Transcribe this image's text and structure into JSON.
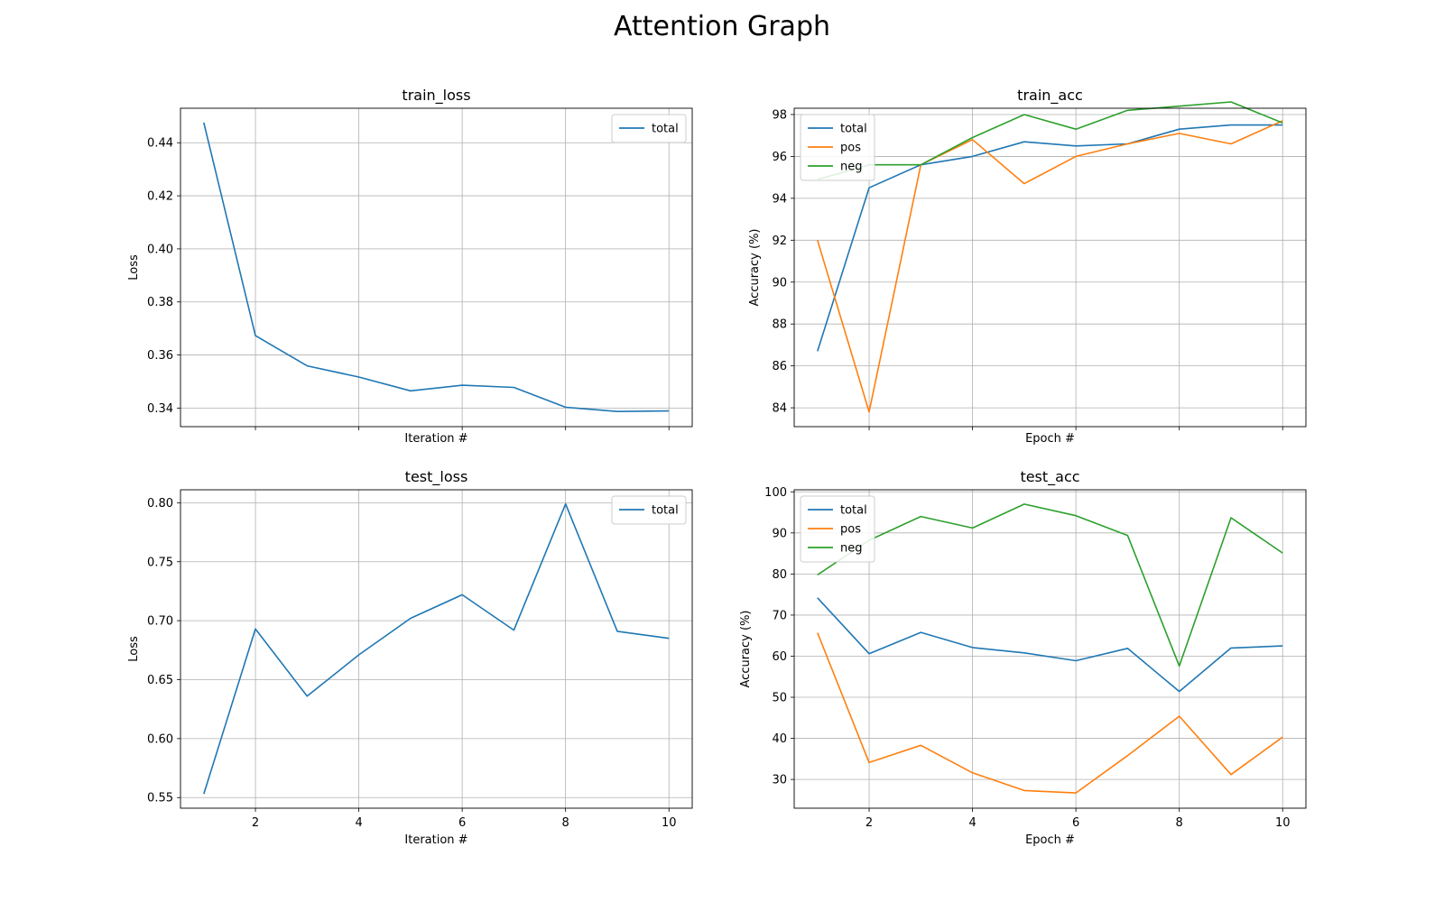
{
  "figure": {
    "title": "Attention Graph"
  },
  "colors": {
    "total": "#1f77b4",
    "pos": "#ff7f0e",
    "neg": "#2ca02c",
    "grid": "#b0b0b0"
  },
  "chart_data": [
    {
      "id": "train_loss",
      "type": "line",
      "title": "train_loss",
      "xlabel": "Iteration #",
      "ylabel": "Loss",
      "x": [
        1,
        2,
        3,
        4,
        5,
        6,
        7,
        8,
        9,
        10
      ],
      "xlim": [
        0.55,
        10.45
      ],
      "ylim": [
        0.333,
        0.453
      ],
      "xticks": [
        2,
        4,
        6,
        8,
        10
      ],
      "yticks": [
        0.34,
        0.36,
        0.38,
        0.4,
        0.42,
        0.44
      ],
      "ytick_labels": [
        "0.34",
        "0.36",
        "0.38",
        "0.40",
        "0.42",
        "0.44"
      ],
      "show_xtick_labels": false,
      "grid": true,
      "legend": "top-right",
      "series": [
        {
          "name": "total",
          "color_key": "total",
          "values": [
            0.4476,
            0.3673,
            0.3559,
            0.3517,
            0.3465,
            0.3486,
            0.3478,
            0.3403,
            0.3387,
            0.3389
          ]
        }
      ]
    },
    {
      "id": "train_acc",
      "type": "line",
      "title": "train_acc",
      "xlabel": "Epoch #",
      "ylabel": "Accuracy (%)",
      "x": [
        1,
        2,
        3,
        4,
        5,
        6,
        7,
        8,
        9,
        10
      ],
      "xlim": [
        0.55,
        10.45
      ],
      "ylim": [
        83.1,
        98.3
      ],
      "xticks": [
        2,
        4,
        6,
        8,
        10
      ],
      "yticks": [
        84,
        86,
        88,
        90,
        92,
        94,
        96,
        98
      ],
      "ytick_labels": [
        "84",
        "86",
        "88",
        "90",
        "92",
        "94",
        "96",
        "98"
      ],
      "show_xtick_labels": false,
      "grid": true,
      "legend": "top-left",
      "series": [
        {
          "name": "total",
          "color_key": "total",
          "values": [
            86.7,
            94.5,
            95.6,
            96.0,
            96.7,
            96.5,
            96.6,
            97.3,
            97.5,
            97.5
          ]
        },
        {
          "name": "pos",
          "color_key": "pos",
          "values": [
            92.0,
            83.8,
            95.6,
            96.8,
            94.7,
            96.0,
            96.6,
            97.1,
            96.6,
            97.7
          ]
        },
        {
          "name": "neg",
          "color_key": "neg",
          "values": [
            94.9,
            95.6,
            95.6,
            96.9,
            98.0,
            97.3,
            98.2,
            98.4,
            98.6,
            97.6
          ]
        }
      ]
    },
    {
      "id": "test_loss",
      "type": "line",
      "title": "test_loss",
      "xlabel": "Iteration #",
      "ylabel": "Loss",
      "x": [
        1,
        2,
        3,
        4,
        5,
        6,
        7,
        8,
        9,
        10
      ],
      "xlim": [
        0.55,
        10.45
      ],
      "ylim": [
        0.541,
        0.811
      ],
      "xticks": [
        2,
        4,
        6,
        8,
        10
      ],
      "xtick_labels": [
        "2",
        "4",
        "6",
        "8",
        "10"
      ],
      "yticks": [
        0.55,
        0.6,
        0.65,
        0.7,
        0.75,
        0.8
      ],
      "ytick_labels": [
        "0.55",
        "0.60",
        "0.65",
        "0.70",
        "0.75",
        "0.80"
      ],
      "show_xtick_labels": true,
      "grid": true,
      "legend": "top-right",
      "series": [
        {
          "name": "total",
          "color_key": "total",
          "values": [
            0.553,
            0.693,
            0.636,
            0.671,
            0.702,
            0.722,
            0.692,
            0.799,
            0.691,
            0.685
          ]
        }
      ]
    },
    {
      "id": "test_acc",
      "type": "line",
      "title": "test_acc",
      "xlabel": "Epoch #",
      "ylabel": "Accuracy (%)",
      "x": [
        1,
        2,
        3,
        4,
        5,
        6,
        7,
        8,
        9,
        10
      ],
      "xlim": [
        0.55,
        10.45
      ],
      "ylim": [
        23.0,
        100.5
      ],
      "xticks": [
        2,
        4,
        6,
        8,
        10
      ],
      "xtick_labels": [
        "2",
        "4",
        "6",
        "8",
        "10"
      ],
      "yticks": [
        30,
        40,
        50,
        60,
        70,
        80,
        90,
        100
      ],
      "ytick_labels": [
        "30",
        "40",
        "50",
        "60",
        "70",
        "80",
        "90",
        "100"
      ],
      "show_xtick_labels": true,
      "grid": true,
      "legend": "top-left",
      "series": [
        {
          "name": "total",
          "color_key": "total",
          "values": [
            74.2,
            60.6,
            65.8,
            62.1,
            60.8,
            58.9,
            61.9,
            51.4,
            62.0,
            62.5
          ]
        },
        {
          "name": "pos",
          "color_key": "pos",
          "values": [
            65.7,
            34.1,
            38.3,
            31.6,
            27.3,
            26.7,
            35.8,
            45.4,
            31.2,
            40.3
          ]
        },
        {
          "name": "neg",
          "color_key": "neg",
          "values": [
            79.8,
            88.2,
            94.0,
            91.2,
            97.0,
            94.2,
            89.4,
            57.6,
            93.7,
            85.1
          ]
        }
      ]
    }
  ]
}
